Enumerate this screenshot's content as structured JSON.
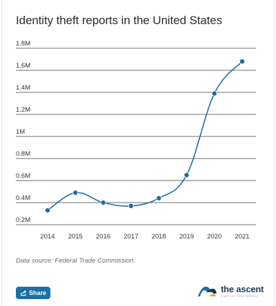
{
  "chart_data": {
    "type": "line",
    "title": "Identity theft reports in the United States",
    "x": [
      "2014",
      "2015",
      "2016",
      "2017",
      "2018",
      "2019",
      "2020",
      "2021"
    ],
    "series": [
      {
        "values": [
          0.33,
          0.49,
          0.4,
          0.37,
          0.44,
          0.65,
          1.39,
          1.68
        ]
      }
    ],
    "y_unit": "M",
    "ylim": [
      0.2,
      1.8
    ],
    "yticks": [
      0.2,
      0.4,
      0.6,
      0.8,
      1.0,
      1.2,
      1.4,
      1.6,
      1.8
    ],
    "ytick_labels": [
      "0.2M",
      "0.4M",
      "0.6M",
      "0.8M",
      "1M",
      "1.2M",
      "1.4M",
      "1.6M",
      "1.8M"
    ],
    "grid": "horizontal",
    "line_color": "#1c6da3",
    "xlabel": "",
    "ylabel": ""
  },
  "source_text": "Data source: Federal Trade Commission.",
  "share_label": "Share",
  "brand": {
    "name": "the ascent",
    "tagline": "A MOTLEY FOOL SERVICE",
    "colors": {
      "navy": "#1f3b58",
      "blue": "#1d6fa5",
      "orange": "#f5a623"
    }
  }
}
